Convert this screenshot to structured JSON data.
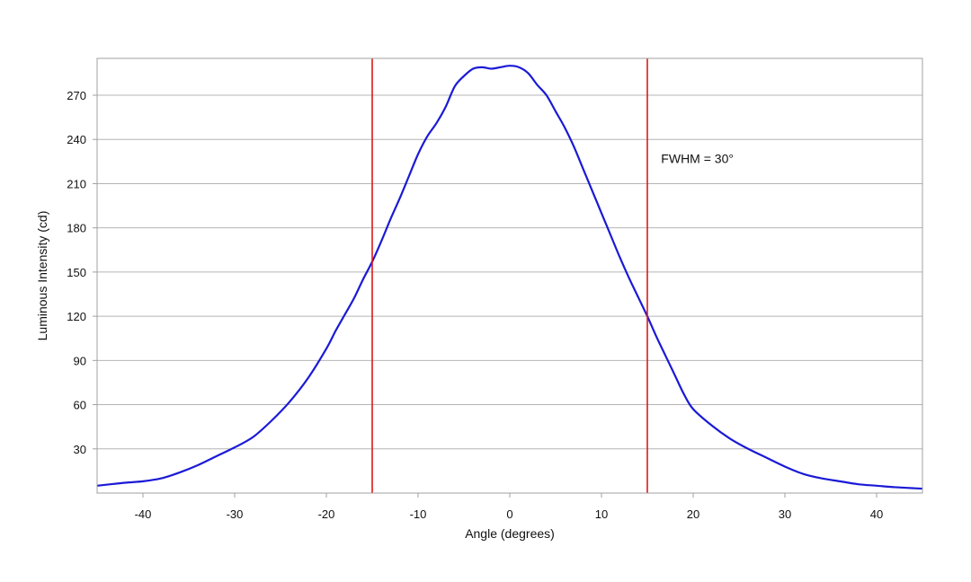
{
  "chart_data": {
    "type": "line",
    "title": "",
    "xlabel": "Angle (degrees)",
    "ylabel": "Luminous Intensity (cd)",
    "xlim": [
      -45,
      45
    ],
    "ylim": [
      0,
      295
    ],
    "xticks": [
      -40,
      -30,
      -20,
      -10,
      0,
      10,
      20,
      30,
      40
    ],
    "yticks": [
      30,
      60,
      90,
      120,
      150,
      180,
      210,
      240,
      270
    ],
    "grid": "horizontal",
    "legend": "none",
    "colors": {
      "curve": "#1a1ad6",
      "markers": "#e01818",
      "grid": "#b4b4b4",
      "frame": "#a0a0a0"
    },
    "series": [
      {
        "x": [
          -45,
          -42,
          -40,
          -38,
          -36,
          -34,
          -32,
          -30,
          -28,
          -26,
          -24,
          -22,
          -20,
          -19,
          -18,
          -17,
          -16,
          -15,
          -14,
          -13,
          -12,
          -11,
          -10,
          -9,
          -8,
          -7,
          -6,
          -5,
          -4,
          -3,
          -2,
          -1,
          0,
          1,
          2,
          3,
          4,
          5,
          6,
          7,
          8,
          9,
          10,
          11,
          12,
          13,
          14,
          15,
          16,
          17,
          18,
          19,
          20,
          22,
          24,
          26,
          28,
          30,
          32,
          34,
          36,
          38,
          40,
          42,
          45
        ],
        "y": [
          5,
          7,
          8,
          10,
          14,
          19,
          25,
          31,
          38,
          49,
          62,
          78,
          98,
          110,
          121,
          132,
          145,
          157,
          171,
          186,
          200,
          215,
          230,
          242,
          251,
          262,
          276,
          283,
          288,
          289,
          288,
          289,
          290,
          289,
          285,
          277,
          270,
          259,
          248,
          235,
          220,
          205,
          190,
          175,
          160,
          146,
          133,
          120,
          106,
          93,
          80,
          67,
          57,
          46,
          37,
          30,
          24,
          18,
          13,
          10,
          8,
          6,
          5,
          4,
          3
        ]
      }
    ],
    "vlines": [
      -15,
      15
    ],
    "annotations": [
      {
        "text": "FWHM = 30°",
        "x": 16.5,
        "y": 224
      }
    ]
  }
}
